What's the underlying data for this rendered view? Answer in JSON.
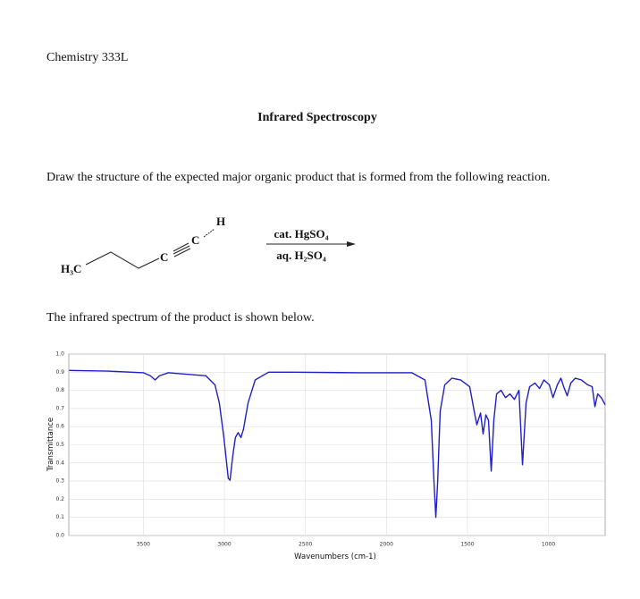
{
  "header": {
    "course": "Chemistry 333L",
    "title": "Infrared Spectroscopy"
  },
  "question": "Draw the structure of the expected major organic product that is formed from the following reaction.",
  "reaction": {
    "reactant_atoms": [
      "H₃C",
      "C",
      "C",
      "H"
    ],
    "reagents": [
      "cat. HgSO₄",
      "aq. H₂SO₄"
    ]
  },
  "caption": "The infrared spectrum of the product is shown below.",
  "chart_data": {
    "type": "line",
    "xlabel": "Wavenumbers (cm-1)",
    "ylabel": "Transmittance",
    "x": [
      3958,
      3721,
      3500,
      3456,
      3428,
      3401,
      3346,
      3114,
      3058,
      3031,
      3003,
      2976,
      2965,
      2948,
      2932,
      2915,
      2898,
      2882,
      2854,
      2810,
      2727,
      2562,
      2175,
      1844,
      1762,
      1723,
      1706,
      1695,
      1684,
      1668,
      1640,
      1596,
      1541,
      1486,
      1458,
      1442,
      1419,
      1403,
      1386,
      1370,
      1353,
      1337,
      1320,
      1292,
      1265,
      1237,
      1210,
      1182,
      1160,
      1138,
      1116,
      1083,
      1055,
      1028,
      994,
      972,
      945,
      923,
      906,
      884,
      862,
      834,
      796,
      757,
      730,
      713,
      696,
      674,
      650
    ],
    "values": [
      0.91,
      0.906,
      0.897,
      0.88,
      0.857,
      0.88,
      0.897,
      0.88,
      0.83,
      0.73,
      0.54,
      0.315,
      0.305,
      0.44,
      0.54,
      0.567,
      0.54,
      0.586,
      0.73,
      0.857,
      0.9,
      0.9,
      0.897,
      0.897,
      0.857,
      0.635,
      0.29,
      0.1,
      0.29,
      0.685,
      0.83,
      0.867,
      0.857,
      0.82,
      0.685,
      0.61,
      0.675,
      0.56,
      0.665,
      0.635,
      0.355,
      0.635,
      0.78,
      0.8,
      0.76,
      0.78,
      0.75,
      0.8,
      0.39,
      0.73,
      0.82,
      0.84,
      0.81,
      0.857,
      0.83,
      0.76,
      0.83,
      0.867,
      0.82,
      0.77,
      0.84,
      0.867,
      0.857,
      0.83,
      0.82,
      0.71,
      0.78,
      0.76,
      0.72
    ],
    "color": "#1f1fc8",
    "xlim": [
      3960,
      650
    ],
    "ylim": [
      0,
      1
    ],
    "xticks": [
      3500,
      3000,
      2500,
      2000,
      1500,
      1000
    ],
    "yticks": [
      {
        "value": 0,
        "label": "0.0"
      },
      0.1,
      0.2,
      0.3,
      0.4,
      0.5,
      0.6,
      0.7,
      0.8,
      0.9,
      {
        "value": 1,
        "label": "1.0"
      }
    ],
    "grid": true
  }
}
